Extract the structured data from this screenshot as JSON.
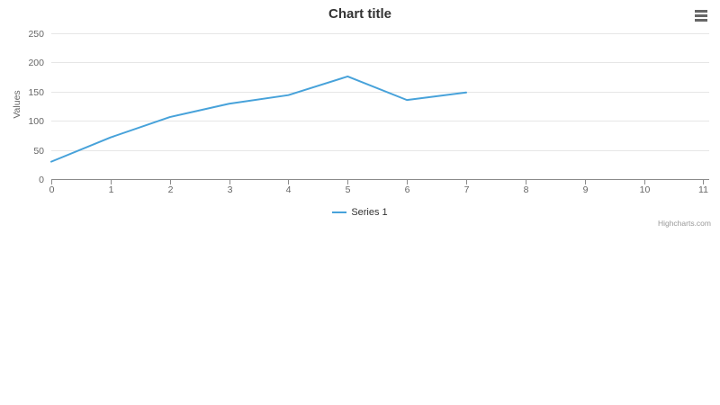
{
  "chart": {
    "title": "Chart title",
    "credits": "Highcharts.com",
    "menu_tooltip": "Chart context menu"
  },
  "chart_data": {
    "type": "line",
    "title": "Chart title",
    "xlabel": "",
    "ylabel": "Values",
    "x": [
      0,
      1,
      2,
      3,
      4,
      5,
      6,
      7
    ],
    "series": [
      {
        "name": "Series 1",
        "color": "#47a2da",
        "values": [
          29.9,
          71.5,
          106.4,
          129.2,
          144.0,
          176.0,
          135.6,
          148.5
        ]
      }
    ],
    "xlim": [
      0,
      11.1
    ],
    "ylim": [
      0,
      250
    ],
    "x_ticks": [
      0,
      1,
      2,
      3,
      4,
      5,
      6,
      7,
      8,
      9,
      10,
      11
    ],
    "y_ticks": [
      0,
      50,
      100,
      150,
      200,
      250
    ],
    "grid": "horizontal-only",
    "legend_position": "bottom-center"
  },
  "icons": {
    "context_menu": "hamburger-icon"
  },
  "colors": {
    "title_text": "#333333",
    "axis_label_text": "#666666",
    "axis_line": "#8a8a8a",
    "gridline": "#e6e6e6",
    "legend_text": "#333333",
    "credits_text": "#999999",
    "menu_icon": "#666666",
    "background": "#ffffff"
  }
}
